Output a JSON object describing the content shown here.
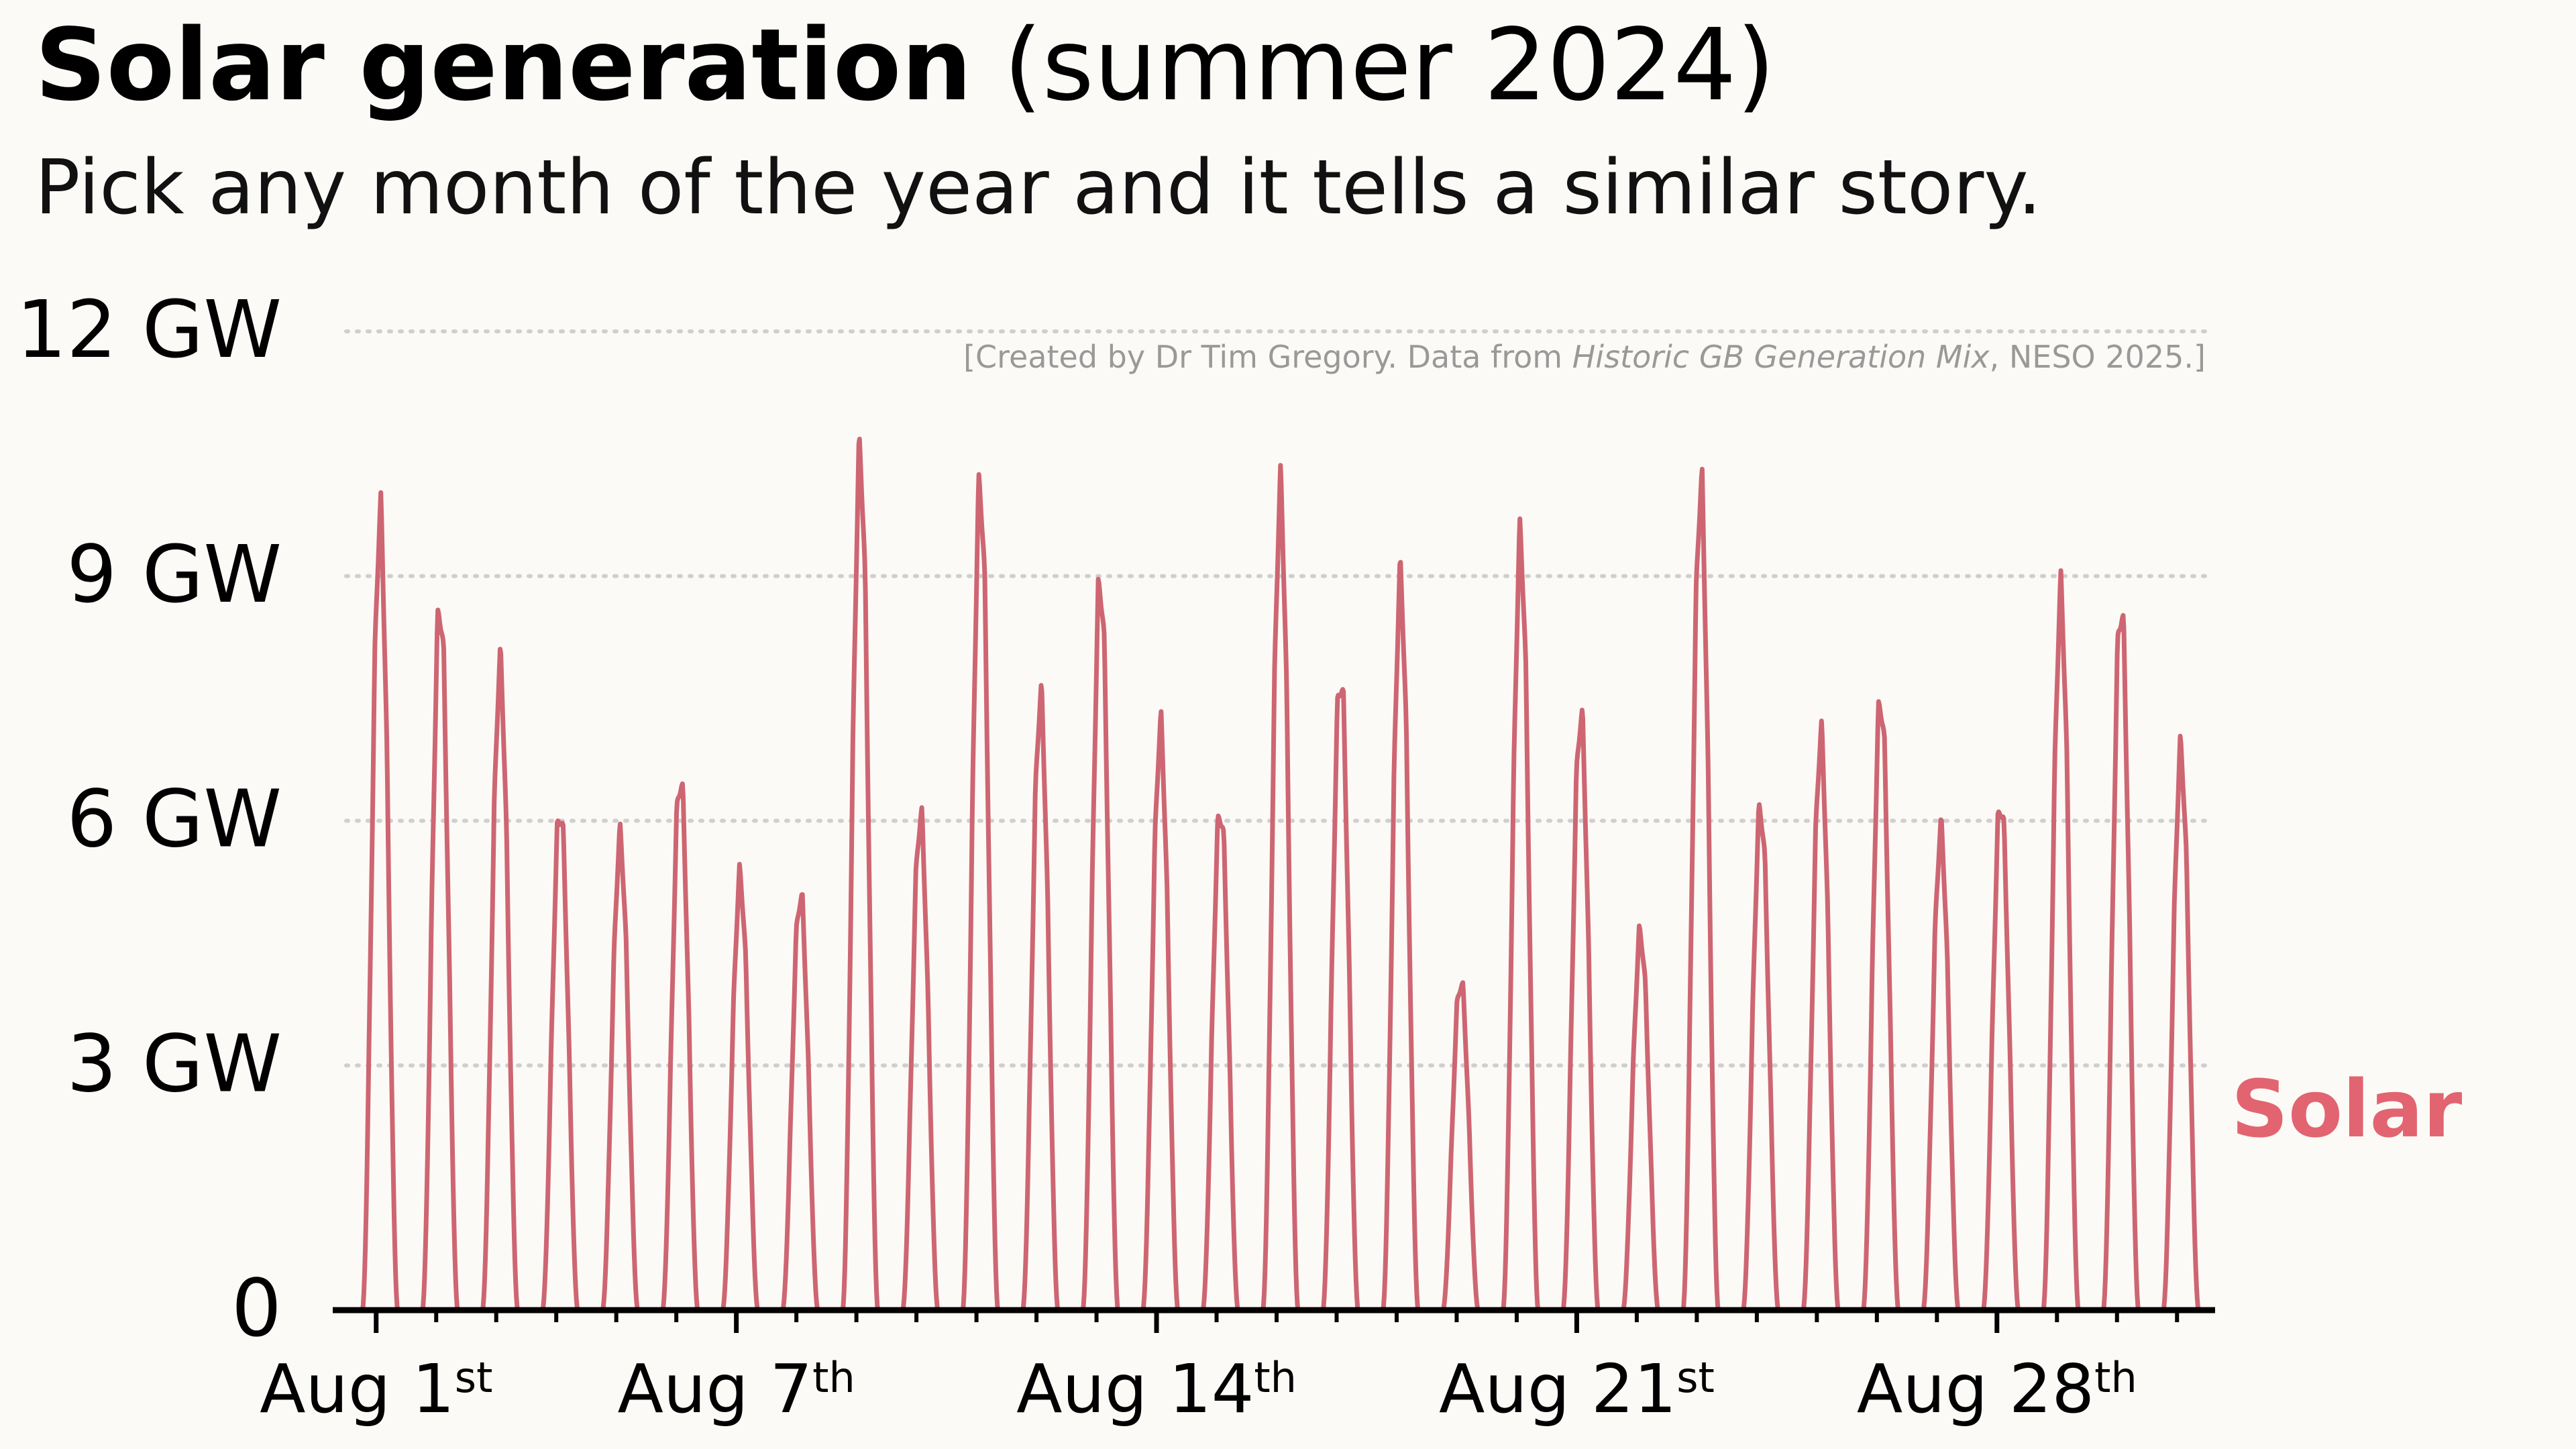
{
  "chart_data": {
    "type": "line",
    "title_bold": "Solar generation",
    "title_rest": " (summer 2024)",
    "subtitle": "Pick any month of the year and it tells a similar story.",
    "credit": {
      "prefix": "[Created by Dr Tim Gregory. Data from ",
      "source": "Historic GB Generation Mix",
      "suffix": ", NESO 2025.]"
    },
    "y_ticks": [
      {
        "value": 12,
        "label": "12 GW"
      },
      {
        "value": 9,
        "label": "9 GW"
      },
      {
        "value": 6,
        "label": "6 GW"
      },
      {
        "value": 3,
        "label": "3 GW"
      },
      {
        "value": 0,
        "label": "0"
      }
    ],
    "ylim": [
      0,
      12
    ],
    "x_days": 31,
    "x_ticks": [
      {
        "day": 1,
        "base": "Aug 1",
        "sup": "st"
      },
      {
        "day": 7,
        "base": "Aug 7",
        "sup": "th"
      },
      {
        "day": 14,
        "base": "Aug 14",
        "sup": "th"
      },
      {
        "day": 21,
        "base": "Aug 21",
        "sup": "st"
      },
      {
        "day": 28,
        "base": "Aug 28",
        "sup": "th"
      }
    ],
    "grid": true,
    "series": [
      {
        "name": "Solar",
        "color": "#cd6672",
        "daily_peaks": [
          10.1,
          9.0,
          8.2,
          6.4,
          6.0,
          6.8,
          5.5,
          5.3,
          10.9,
          6.3,
          10.5,
          7.8,
          9.3,
          7.4,
          6.4,
          10.4,
          8.1,
          9.3,
          4.2,
          9.8,
          7.6,
          4.8,
          10.5,
          6.4,
          7.3,
          7.8,
          6.1,
          6.5,
          9.1,
          9.0,
          7.1
        ]
      }
    ]
  }
}
